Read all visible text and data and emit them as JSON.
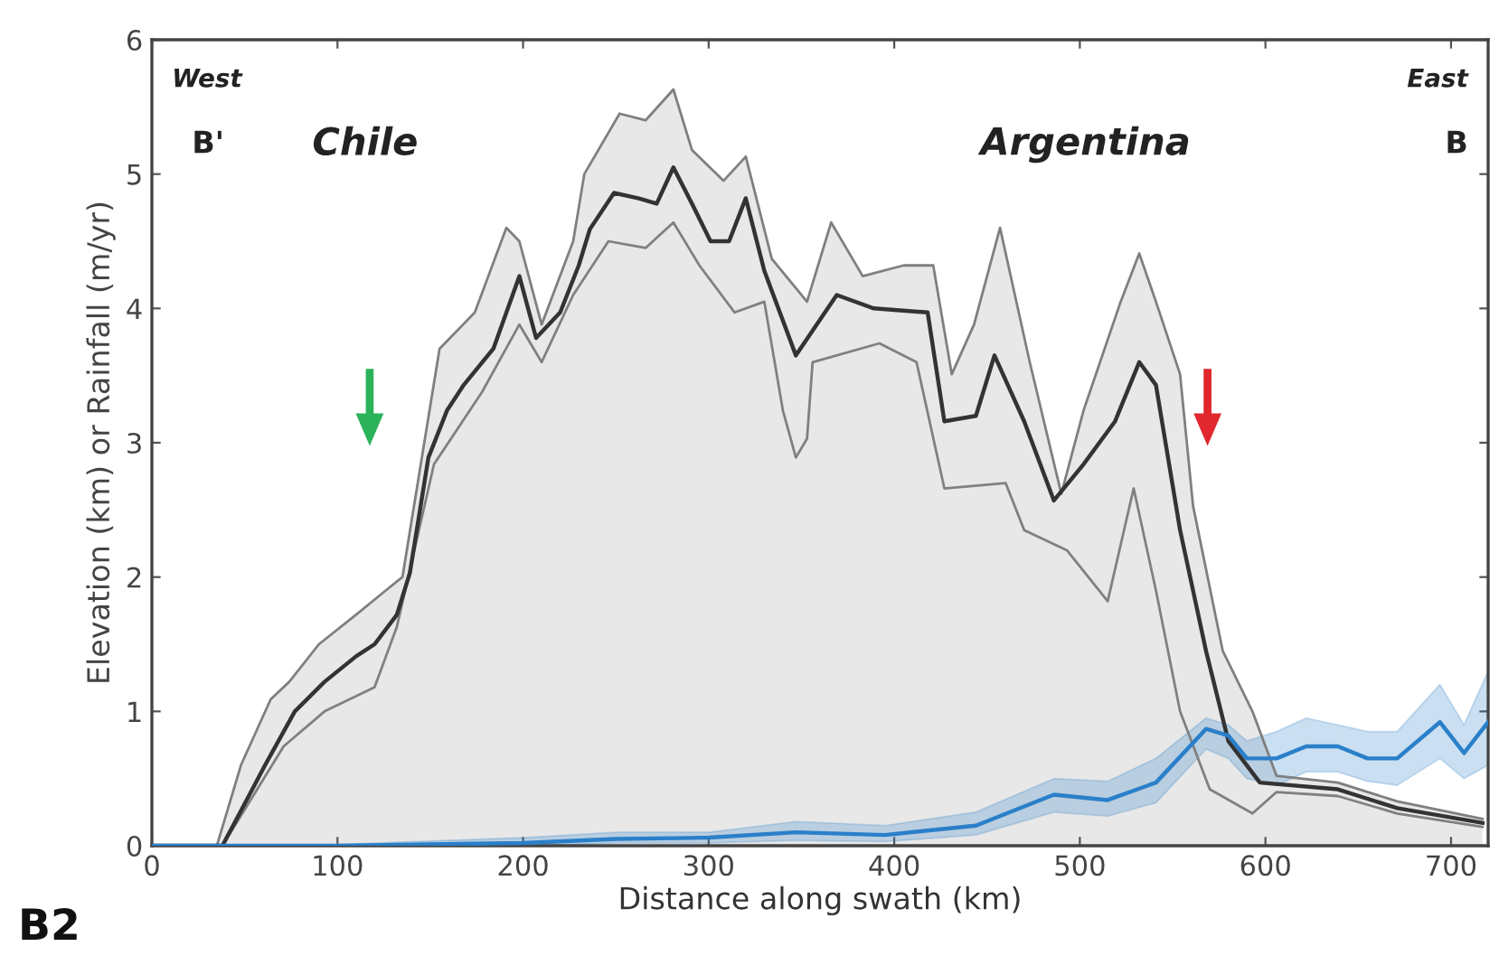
{
  "chart_data": {
    "type": "line",
    "xlabel": "Distance along swath (km)",
    "ylabel": "Elevation (km) or Rainfall (m/yr)",
    "annotations": [
      "West",
      "B'",
      "Chile",
      "Argentina",
      "East",
      "B",
      "B2"
    ],
    "xlim": [
      0,
      720
    ],
    "ylim": [
      0,
      6
    ],
    "xticks": [
      0,
      100,
      200,
      300,
      400,
      500,
      600,
      700
    ],
    "yticks": [
      0,
      1,
      2,
      3,
      4,
      5,
      6
    ],
    "grid": false,
    "legend": false,
    "series": [
      {
        "type": "area",
        "color": "#7f7f7f",
        "x": [
          0,
          35,
          48,
          64,
          74,
          90,
          110,
          126,
          135,
          155,
          174,
          191,
          198,
          210,
          227,
          233,
          252,
          266,
          281,
          291,
          308,
          320,
          334,
          353,
          366,
          383,
          405,
          421,
          431,
          443,
          457,
          473,
          490,
          502,
          522,
          532,
          541,
          554,
          561,
          577,
          593,
          606,
          639,
          671,
          717
        ],
        "values": [
          0,
          0,
          0.6,
          1.09,
          1.22,
          1.5,
          1.72,
          1.9,
          2.0,
          3.7,
          3.97,
          4.6,
          4.5,
          3.88,
          4.5,
          5.0,
          5.45,
          5.4,
          5.63,
          5.18,
          4.95,
          5.13,
          4.37,
          4.05,
          4.64,
          4.24,
          4.32,
          4.32,
          3.51,
          3.88,
          4.6,
          3.6,
          2.62,
          3.24,
          4.05,
          4.41,
          4.05,
          3.51,
          2.53,
          1.45,
          1.0,
          0.52,
          0.47,
          0.33,
          0.2
        ]
      },
      {
        "color": "#808080",
        "x": [
          0,
          38,
          71,
          93,
          120,
          132,
          152,
          178,
          198,
          210,
          227,
          246,
          266,
          281,
          295,
          314,
          330,
          340,
          347,
          353,
          356,
          392,
          412,
          427,
          460,
          470,
          493,
          515,
          529,
          541,
          554,
          570,
          593,
          606,
          639,
          671,
          717
        ],
        "values": [
          0,
          0,
          0.74,
          1.0,
          1.18,
          1.63,
          2.84,
          3.38,
          3.88,
          3.6,
          4.1,
          4.5,
          4.45,
          4.64,
          4.32,
          3.97,
          4.05,
          3.24,
          2.89,
          3.03,
          3.6,
          3.74,
          3.6,
          2.66,
          2.7,
          2.35,
          2.2,
          1.82,
          2.66,
          1.9,
          1.0,
          0.42,
          0.24,
          0.4,
          0.37,
          0.24,
          0.14
        ]
      },
      {
        "color": "#333333",
        "x": [
          0,
          38,
          61,
          77,
          93,
          110,
          120,
          132,
          139,
          149,
          159,
          168,
          184,
          198,
          207,
          220,
          230,
          236,
          249,
          262,
          272,
          281,
          291,
          301,
          311,
          320,
          330,
          347,
          369,
          389,
          418,
          427,
          444,
          454,
          470,
          486,
          502,
          519,
          532,
          541,
          554,
          568,
          580,
          597,
          639,
          671,
          717
        ],
        "values": [
          0,
          0,
          0.6,
          1.0,
          1.22,
          1.41,
          1.5,
          1.72,
          2.03,
          2.89,
          3.24,
          3.43,
          3.7,
          4.24,
          3.78,
          3.97,
          4.32,
          4.59,
          4.86,
          4.82,
          4.78,
          5.05,
          4.78,
          4.5,
          4.5,
          4.82,
          4.28,
          3.65,
          4.1,
          4.0,
          3.97,
          3.16,
          3.2,
          3.65,
          3.16,
          2.57,
          2.84,
          3.16,
          3.6,
          3.43,
          2.35,
          1.45,
          0.78,
          0.47,
          0.42,
          0.28,
          0.17
        ]
      },
      {
        "color": "#2a7fc9",
        "x": [
          0,
          100,
          200,
          250,
          300,
          347,
          395,
          444,
          486,
          515,
          541,
          568,
          580,
          590,
          606,
          622,
          639,
          655,
          671,
          694,
          707,
          720
        ],
        "values": [
          0,
          0,
          0.02,
          0.05,
          0.06,
          0.1,
          0.08,
          0.15,
          0.38,
          0.34,
          0.47,
          0.87,
          0.82,
          0.65,
          0.65,
          0.74,
          0.74,
          0.65,
          0.65,
          0.92,
          0.69,
          0.92
        ],
        "upper": [
          0,
          0.01,
          0.06,
          0.1,
          0.1,
          0.18,
          0.15,
          0.25,
          0.5,
          0.48,
          0.65,
          0.95,
          0.9,
          0.78,
          0.85,
          0.95,
          0.9,
          0.85,
          0.85,
          1.2,
          0.9,
          1.3
        ],
        "lower": [
          0,
          0,
          0,
          0.02,
          0.02,
          0.04,
          0.03,
          0.08,
          0.25,
          0.22,
          0.32,
          0.72,
          0.65,
          0.5,
          0.45,
          0.55,
          0.55,
          0.48,
          0.45,
          0.65,
          0.5,
          0.6
        ]
      }
    ]
  }
}
